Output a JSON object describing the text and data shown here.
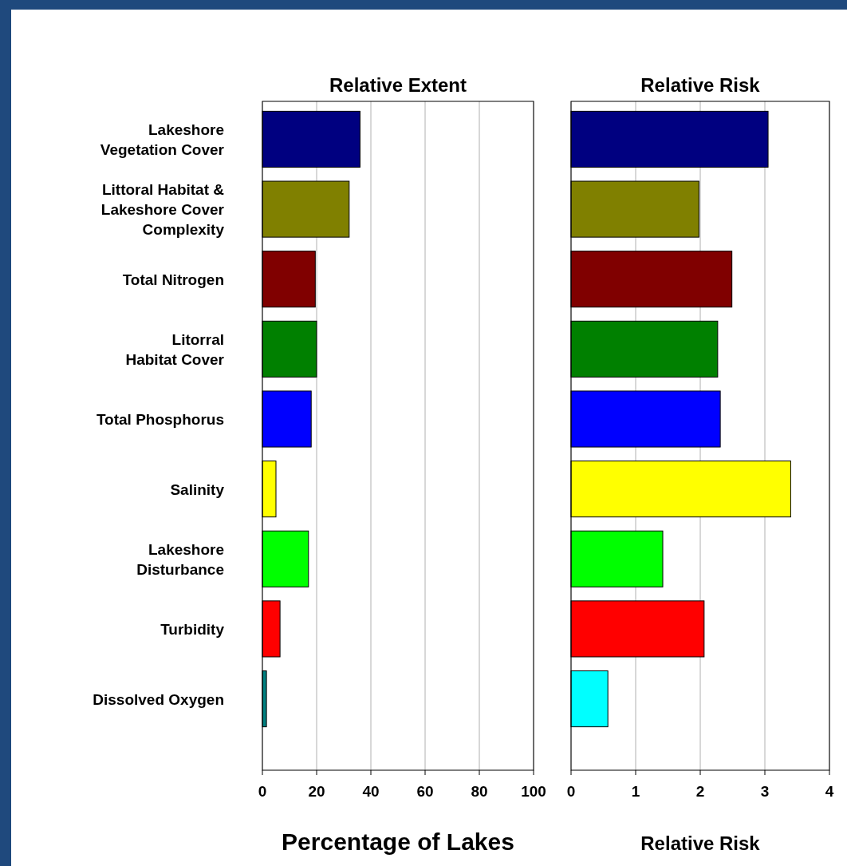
{
  "chart_data": [
    {
      "type": "bar",
      "orientation": "horizontal",
      "title": "Relative Extent",
      "xlabel": "Percentage of Lakes",
      "categories": [
        "Lakeshore\nVegetation Cover",
        "Littoral Habitat &\nLakeshore Cover\nComplexity",
        "Total Nitrogen",
        "Litorral\nHabitat Cover",
        "Total Phosphorus",
        "Salinity",
        "Lakeshore\nDisturbance",
        "Turbidity",
        "Dissolved Oxygen"
      ],
      "values": [
        36,
        32,
        19.5,
        20,
        18,
        5,
        17,
        6.5,
        1.5
      ],
      "colors": [
        "#000080",
        "#808000",
        "#800000",
        "#008000",
        "#0000ff",
        "#ffff00",
        "#00ff00",
        "#ff0000",
        "#008080"
      ],
      "xlim": [
        0,
        100
      ],
      "xticks": [
        0,
        20,
        40,
        60,
        80,
        100
      ],
      "grid": "x"
    },
    {
      "type": "bar",
      "orientation": "horizontal",
      "title": "Relative Risk",
      "xlabel": "Relative Risk",
      "categories": [
        null,
        null,
        null,
        null,
        null,
        null,
        null,
        null,
        null
      ],
      "values": [
        3.05,
        1.98,
        2.49,
        2.27,
        2.31,
        3.4,
        1.42,
        2.06,
        0.57
      ],
      "colors": [
        "#000080",
        "#808000",
        "#800000",
        "#008000",
        "#0000ff",
        "#ffff00",
        "#00ff00",
        "#ff0000",
        "#00ffff"
      ],
      "xlim": [
        0,
        4
      ],
      "xticks": [
        0,
        1,
        2,
        3,
        4
      ],
      "grid": "x",
      "tick_labels": "x"
    }
  ]
}
